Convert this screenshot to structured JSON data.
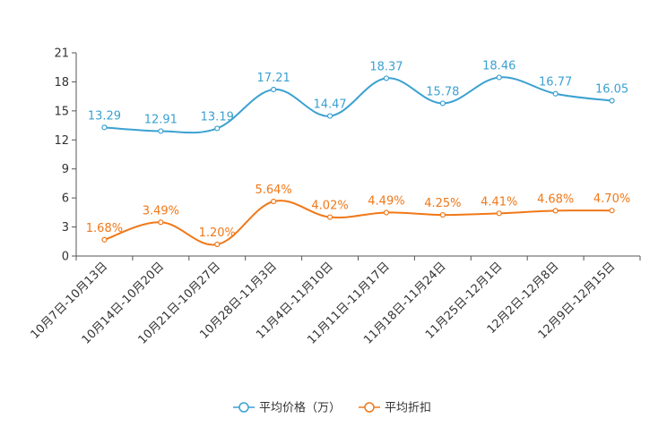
{
  "chart_data": {
    "type": "line",
    "title": "",
    "xlabel": "",
    "ylabel": "",
    "ylim": [
      0,
      21
    ],
    "yticks": [
      0,
      3,
      6,
      9,
      12,
      15,
      18,
      21
    ],
    "categories": [
      "10月7日-10月13日",
      "10月14日-10月20日",
      "10月21日-10月27日",
      "10月28日-11月3日",
      "11月4日-11月10日",
      "11月11日-11月17日",
      "11月18日-11月24日",
      "11月25日-12月1日",
      "12月2日-12月8日",
      "12月9日-12月15日"
    ],
    "series": [
      {
        "name": "平均价格（万）",
        "color": "#3ba1d1",
        "values": [
          13.29,
          12.91,
          13.19,
          17.21,
          14.47,
          18.37,
          15.78,
          18.46,
          16.77,
          16.05
        ],
        "labels": [
          "13.29",
          "12.91",
          "13.19",
          "17.21",
          "14.47",
          "18.37",
          "15.78",
          "18.46",
          "16.77",
          "16.05"
        ]
      },
      {
        "name": "平均折扣",
        "color": "#f07818",
        "values": [
          1.68,
          3.49,
          1.2,
          5.64,
          4.02,
          4.49,
          4.25,
          4.41,
          4.68,
          4.7
        ],
        "labels": [
          "1.68%",
          "3.49%",
          "1.20%",
          "5.64%",
          "4.02%",
          "4.49%",
          "4.25%",
          "4.41%",
          "4.68%",
          "4.70%"
        ]
      }
    ],
    "legend_position": "bottom-center"
  }
}
